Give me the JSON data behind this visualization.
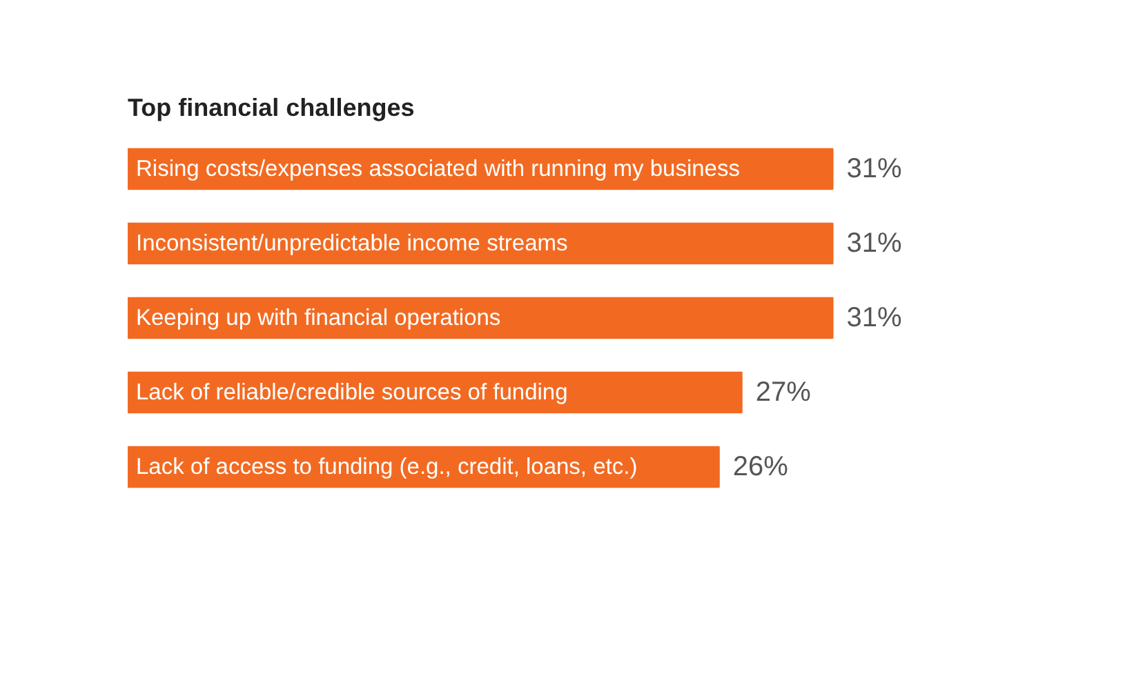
{
  "chart_data": {
    "type": "bar",
    "orientation": "horizontal",
    "title": "Top financial challenges",
    "categories": [
      "Rising costs/expenses associated with running my business",
      "Inconsistent/unpredictable income streams",
      "Keeping up with financial operations",
      "Lack of reliable/credible sources of funding",
      "Lack of access to funding (e.g., credit, loans, etc.)"
    ],
    "values": [
      31,
      31,
      31,
      27,
      26
    ],
    "value_labels": [
      "31%",
      "31%",
      "31%",
      "27%",
      "26%"
    ],
    "color": "#f26a22",
    "grid": false
  }
}
